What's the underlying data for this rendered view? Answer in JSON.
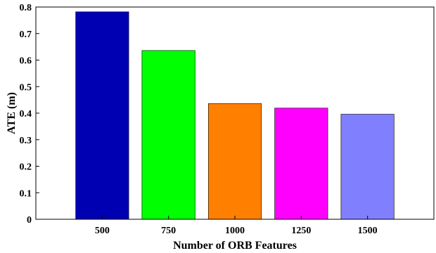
{
  "chart_data": {
    "type": "bar",
    "categories": [
      "500",
      "750",
      "1000",
      "1250",
      "1500"
    ],
    "values": [
      0.782,
      0.636,
      0.436,
      0.419,
      0.396
    ],
    "bar_colors": [
      "#0000B3",
      "#00FF00",
      "#FF8000",
      "#FF00FF",
      "#8080FF"
    ],
    "xlabel": "Number of ORB Features",
    "ylabel": "ATE (m)",
    "ylim": [
      0,
      0.8
    ],
    "yticks": [
      "0",
      "0.1",
      "0.2",
      "0.3",
      "0.4",
      "0.5",
      "0.6",
      "0.7",
      "0.8"
    ],
    "grid": false
  }
}
